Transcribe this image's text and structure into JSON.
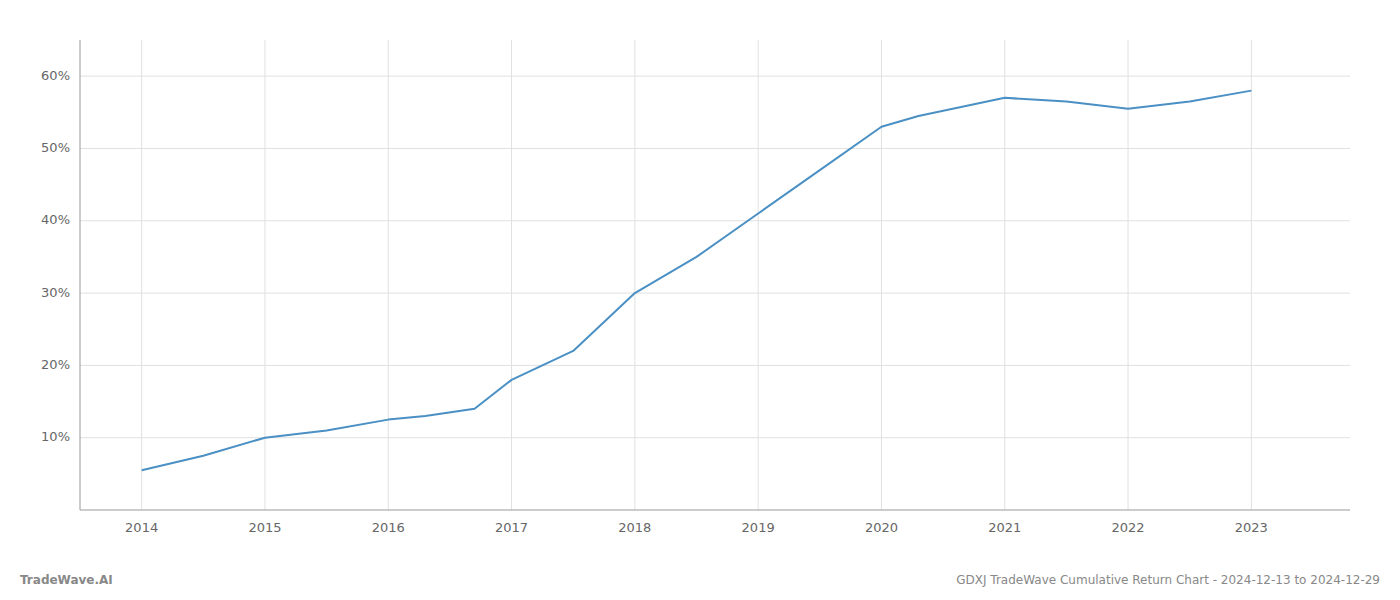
{
  "chart_data": {
    "type": "line",
    "x": [
      2014,
      2014.5,
      2015,
      2015.5,
      2016,
      2016.3,
      2016.7,
      2017,
      2017.5,
      2018,
      2018.5,
      2019,
      2019.5,
      2020,
      2020.3,
      2021,
      2021.5,
      2022,
      2022.5,
      2023
    ],
    "values": [
      5.5,
      7.5,
      10.0,
      11.0,
      12.5,
      13.0,
      14.0,
      18.0,
      22.0,
      30.0,
      35.0,
      41.0,
      47.0,
      53.0,
      54.5,
      57.0,
      56.5,
      55.5,
      56.5,
      58.0
    ],
    "color": "#4a90c4",
    "xlim": [
      2013.5,
      2023.8
    ],
    "xticks": [
      2014,
      2015,
      2016,
      2017,
      2018,
      2019,
      2020,
      2021,
      2022,
      2023
    ],
    "ylim": [
      0,
      65
    ],
    "yticks": [
      {
        "value": 10,
        "label": "10%"
      },
      {
        "value": 20,
        "label": "20%"
      },
      {
        "value": 30,
        "label": "30%"
      },
      {
        "value": 40,
        "label": "40%"
      },
      {
        "value": 50,
        "label": "50%"
      },
      {
        "value": 60,
        "label": "60%"
      }
    ],
    "grid": true,
    "annotations": [
      "TradeWave.AI",
      "GDXJ TradeWave Cumulative Return Chart - 2024-12-13 to 2024-12-29"
    ]
  }
}
